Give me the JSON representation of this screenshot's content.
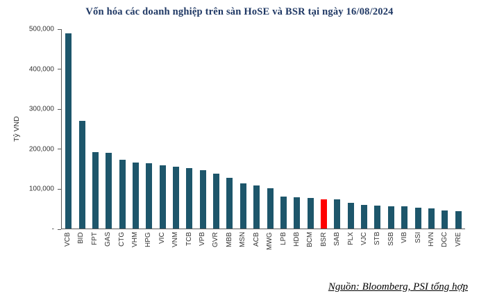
{
  "source_note": "Nguồn: Bloomberg, PSI tổng hợp",
  "colors": {
    "bar": "#1d566b",
    "highlight_bar": "#ff0000",
    "title": "#1f3864"
  },
  "chart_data": {
    "type": "bar",
    "title": "Vốn hóa các doanh nghiệp trên sàn HoSE và BSR tại ngày 16/08/2024",
    "xlabel": "",
    "ylabel": "Tỷ VND",
    "ylim": [
      0,
      500000
    ],
    "grid": false,
    "legend": "none",
    "highlight_category": "BSR",
    "y_ticks": [
      "500,000",
      "400,000",
      "300,000",
      "200,000",
      "100,000",
      "-"
    ],
    "categories": [
      "VCB",
      "BID",
      "FPT",
      "GAS",
      "CTG",
      "VHM",
      "HPG",
      "VIC",
      "VNM",
      "TCB",
      "VPB",
      "GVR",
      "MBB",
      "MSN",
      "ACB",
      "MWG",
      "LPB",
      "HDB",
      "BCM",
      "BSR",
      "SAB",
      "PLX",
      "VJC",
      "STB",
      "SSB",
      "VIB",
      "SSI",
      "HVN",
      "DGC",
      "VRE"
    ],
    "values": [
      490000,
      270000,
      192000,
      190000,
      173000,
      166000,
      163000,
      158000,
      155000,
      152000,
      147000,
      138000,
      127000,
      113000,
      108000,
      101000,
      81000,
      79000,
      77000,
      74000,
      73000,
      65000,
      59000,
      58000,
      56000,
      56000,
      53000,
      51000,
      45000,
      43000
    ]
  }
}
